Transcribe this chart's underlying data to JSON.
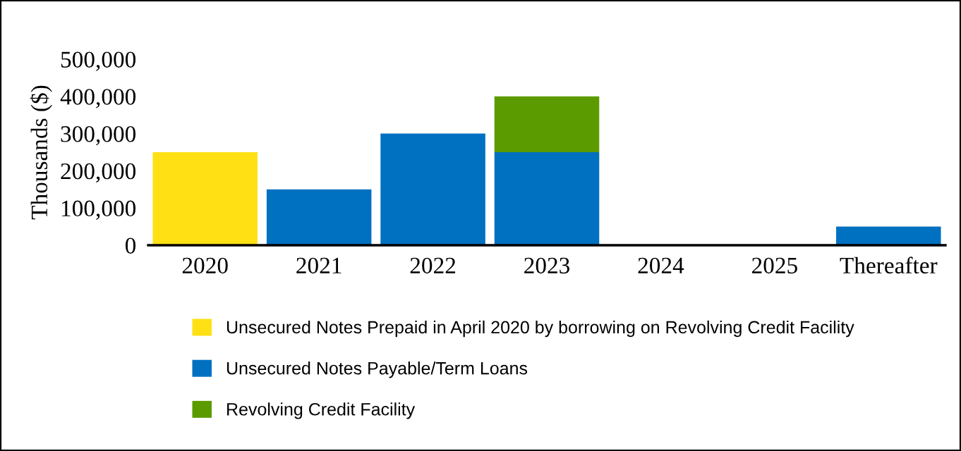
{
  "chart_data": {
    "type": "bar",
    "stacked": true,
    "ylabel": "Thousands ($)",
    "categories": [
      "2020",
      "2021",
      "2022",
      "2023",
      "2024",
      "2025",
      "Thereafter"
    ],
    "series": [
      {
        "name": "Unsecured Notes Prepaid in April 2020 by borrowing on Revolving Credit Facility",
        "color": "#ffe014",
        "values": [
          250000,
          null,
          null,
          null,
          null,
          null,
          null
        ]
      },
      {
        "name": "Unsecured Notes Payable/Term Loans",
        "color": "#0070c0",
        "values": [
          null,
          150000,
          300000,
          250000,
          0,
          0,
          50000
        ]
      },
      {
        "name": "Revolving Credit Facility",
        "color": "#5b9b00",
        "values": [
          null,
          null,
          null,
          150000,
          null,
          null,
          null
        ]
      }
    ],
    "ylim": [
      0,
      500000
    ],
    "yticks": [
      {
        "value": 0,
        "label": "0"
      },
      {
        "value": 100000,
        "label": "100,000"
      },
      {
        "value": 200000,
        "label": "200,000"
      },
      {
        "value": 300000,
        "label": "300,000"
      },
      {
        "value": 400000,
        "label": "400,000"
      },
      {
        "value": 500000,
        "label": "500,000"
      }
    ],
    "grid": false,
    "legend": "bottom"
  }
}
